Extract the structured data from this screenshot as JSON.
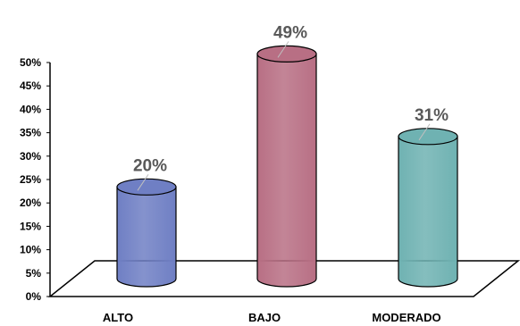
{
  "chart_data": {
    "type": "bar",
    "style": "3d-cylinder",
    "title": "",
    "xlabel": "",
    "ylabel": "",
    "ylim": [
      0,
      50
    ],
    "y_ticks": [
      0,
      5,
      10,
      15,
      20,
      25,
      30,
      35,
      40,
      45,
      50
    ],
    "y_tick_labels": [
      "0%",
      "5%",
      "10%",
      "15%",
      "20%",
      "25%",
      "30%",
      "35%",
      "40%",
      "45%",
      "50%"
    ],
    "categories": [
      "ALTO",
      "BAJO",
      "MODERADO"
    ],
    "values": [
      20,
      49,
      31
    ],
    "data_labels": [
      "20%",
      "49%",
      "31%"
    ],
    "bar_colors": [
      "#6f7fc4",
      "#b86f84",
      "#6fb2b2"
    ],
    "grid": false,
    "legend": "none"
  }
}
